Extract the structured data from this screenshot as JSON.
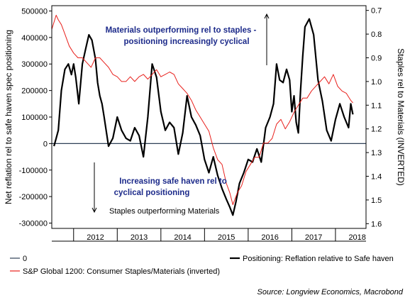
{
  "chart_data": {
    "type": "line",
    "grid": false,
    "legend_placement": "bottom",
    "left_axis": {
      "label": "Net reflation rel to safe haven spec positioning",
      "ylim": [
        -320000,
        520000
      ],
      "ticks": [
        "500000",
        "400000",
        "300000",
        "200000",
        "100000",
        "0",
        "-100000",
        "-200000",
        "-300000"
      ],
      "tick_values": [
        500000,
        400000,
        300000,
        200000,
        100000,
        0,
        -100000,
        -200000,
        -300000
      ]
    },
    "right_axis": {
      "label": "Staples rel to Materials (INVERTED)",
      "inverted": true,
      "ylim": [
        0.68,
        1.62
      ],
      "ticks": [
        "0.7",
        "0.8",
        "0.9",
        "1.0",
        "1.1",
        "1.2",
        "1.3",
        "1.4",
        "1.5",
        "1.6"
      ],
      "tick_values": [
        0.7,
        0.8,
        0.9,
        1.0,
        1.1,
        1.2,
        1.3,
        1.4,
        1.5,
        1.6
      ]
    },
    "x_axis": {
      "xlim": [
        2011.5,
        2018.7
      ],
      "year_labels": [
        "2012",
        "2013",
        "2014",
        "2015",
        "2016",
        "2017",
        "2018"
      ],
      "year_positions": [
        2012,
        2013,
        2014,
        2015,
        2016,
        2017,
        2018
      ]
    },
    "annotations": [
      {
        "text": "Materials outperforming rel to staples -",
        "color": "#1c2a8a"
      },
      {
        "text": "positioning increasingly cyclical",
        "color": "#1c2a8a"
      },
      {
        "text": "Increasing safe haven rel to",
        "color": "#1c2a8a"
      },
      {
        "text": "cyclical positioning",
        "color": "#1c2a8a"
      },
      {
        "text": "Staples outperforming Materials",
        "color": "#000000"
      }
    ],
    "series": [
      {
        "name": "0",
        "axis": "left",
        "color": "#2f3f56",
        "x": [
          2011.5,
          2018.7
        ],
        "values": [
          0,
          0
        ]
      },
      {
        "name": "Positioning: Reflation relative to Safe haven",
        "axis": "left",
        "color": "#000000",
        "x": [
          2011.55,
          2011.6,
          2011.65,
          2011.72,
          2011.8,
          2011.88,
          2011.95,
          2012.0,
          2012.05,
          2012.12,
          2012.2,
          2012.28,
          2012.35,
          2012.42,
          2012.5,
          2012.55,
          2012.6,
          2012.65,
          2012.7,
          2012.8,
          2012.9,
          2013.0,
          2013.1,
          2013.2,
          2013.3,
          2013.4,
          2013.5,
          2013.6,
          2013.7,
          2013.8,
          2013.9,
          2014.0,
          2014.1,
          2014.2,
          2014.3,
          2014.4,
          2014.5,
          2014.6,
          2014.7,
          2014.8,
          2014.9,
          2015.0,
          2015.1,
          2015.2,
          2015.3,
          2015.4,
          2015.5,
          2015.58,
          2015.65,
          2015.72,
          2015.8,
          2015.9,
          2016.0,
          2016.1,
          2016.2,
          2016.3,
          2016.4,
          2016.5,
          2016.58,
          2016.65,
          2016.72,
          2016.8,
          2016.88,
          2016.95,
          2017.0,
          2017.05,
          2017.1,
          2017.15,
          2017.2,
          2017.25,
          2017.3,
          2017.4,
          2017.5,
          2017.6,
          2017.7,
          2017.8,
          2017.9,
          2018.0,
          2018.1,
          2018.2,
          2018.3,
          2018.35,
          2018.4
        ],
        "values": [
          -10000,
          20000,
          50000,
          200000,
          280000,
          300000,
          260000,
          300000,
          250000,
          150000,
          300000,
          360000,
          410000,
          390000,
          320000,
          230000,
          180000,
          150000,
          100000,
          -10000,
          20000,
          100000,
          50000,
          20000,
          10000,
          60000,
          30000,
          -50000,
          100000,
          300000,
          250000,
          120000,
          50000,
          80000,
          60000,
          -40000,
          40000,
          180000,
          100000,
          70000,
          30000,
          -60000,
          -110000,
          -50000,
          -120000,
          -170000,
          -210000,
          -240000,
          -270000,
          -220000,
          -150000,
          -110000,
          -60000,
          -70000,
          -20000,
          -70000,
          60000,
          100000,
          150000,
          300000,
          240000,
          230000,
          280000,
          240000,
          120000,
          180000,
          80000,
          40000,
          200000,
          330000,
          440000,
          470000,
          410000,
          240000,
          160000,
          50000,
          10000,
          90000,
          150000,
          100000,
          60000,
          150000,
          110000
        ]
      },
      {
        "name": "S&P Global 1200: Consumer Staples/Materials (inverted)",
        "axis": "right",
        "color": "#e8201c",
        "x": [
          2011.5,
          2011.55,
          2011.6,
          2011.65,
          2011.72,
          2011.8,
          2011.9,
          2012.0,
          2012.1,
          2012.2,
          2012.3,
          2012.4,
          2012.5,
          2012.6,
          2012.7,
          2012.8,
          2012.9,
          2013.0,
          2013.1,
          2013.2,
          2013.3,
          2013.4,
          2013.5,
          2013.6,
          2013.7,
          2013.8,
          2013.9,
          2014.0,
          2014.1,
          2014.2,
          2014.3,
          2014.4,
          2014.5,
          2014.6,
          2014.7,
          2014.8,
          2014.9,
          2015.0,
          2015.1,
          2015.2,
          2015.3,
          2015.4,
          2015.5,
          2015.58,
          2015.65,
          2015.75,
          2015.85,
          2015.95,
          2016.05,
          2016.15,
          2016.25,
          2016.35,
          2016.45,
          2016.55,
          2016.65,
          2016.75,
          2016.85,
          2016.95,
          2017.05,
          2017.15,
          2017.25,
          2017.35,
          2017.45,
          2017.55,
          2017.65,
          2017.75,
          2017.85,
          2017.95,
          2018.05,
          2018.15,
          2018.25,
          2018.35,
          2018.4
        ],
        "values": [
          0.78,
          0.75,
          0.72,
          0.74,
          0.76,
          0.8,
          0.85,
          0.88,
          0.9,
          0.9,
          0.92,
          0.94,
          0.9,
          0.9,
          0.92,
          0.94,
          0.97,
          0.98,
          1.0,
          1.0,
          0.98,
          1.0,
          0.98,
          0.97,
          0.99,
          0.97,
          0.95,
          0.98,
          0.97,
          0.96,
          0.97,
          1.01,
          1.03,
          1.05,
          1.08,
          1.12,
          1.15,
          1.18,
          1.21,
          1.28,
          1.33,
          1.35,
          1.43,
          1.47,
          1.52,
          1.47,
          1.44,
          1.38,
          1.35,
          1.32,
          1.32,
          1.26,
          1.26,
          1.24,
          1.18,
          1.16,
          1.2,
          1.17,
          1.13,
          1.1,
          1.07,
          1.07,
          1.04,
          1.02,
          1.0,
          0.98,
          1.01,
          0.97,
          1.02,
          1.04,
          1.05,
          1.08,
          1.09
        ]
      }
    ],
    "legend": [
      {
        "label": "0",
        "color": "#2f3f56",
        "weight": "thin"
      },
      {
        "label": "Positioning: Reflation relative to Safe haven",
        "color": "#000000",
        "weight": "bold"
      },
      {
        "label": "S&P Global 1200: Consumer Staples/Materials (inverted)",
        "color": "#e8201c",
        "weight": "thin"
      }
    ],
    "source": "Source: Longview Economics, Macrobond"
  }
}
